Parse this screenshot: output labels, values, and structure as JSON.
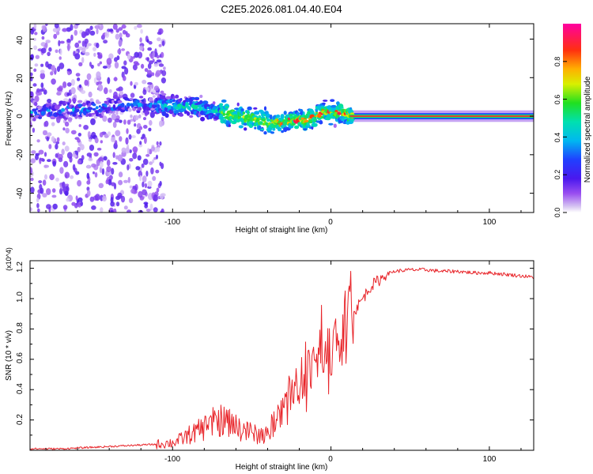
{
  "figure_title": "C2E5.2026.081.04.40.E04",
  "chart_data": [
    {
      "type": "heatmap",
      "title": "C2E5.2026.081.04.40.E04",
      "xlabel": "Height of straight line (km)",
      "ylabel": "Frequency (Hz)",
      "xlim": [
        -190,
        128
      ],
      "ylim": [
        -50,
        48
      ],
      "xticks": [
        -100,
        0,
        100
      ],
      "xtick_labels": [
        "-100",
        "0",
        "100"
      ],
      "yticks": [
        -40,
        -20,
        0,
        20,
        40
      ],
      "ytick_labels": [
        "-40",
        "-20",
        "0",
        "20",
        "40"
      ],
      "colorbar": {
        "label": "Normalized spectral amplitude",
        "range": [
          0,
          1
        ],
        "ticks": [
          0.0,
          0.2,
          0.4,
          0.6,
          0.8
        ],
        "tick_labels": [
          "0.0",
          "0.2",
          "0.4",
          "0.6",
          "0.8"
        ]
      },
      "ridge": {
        "x": [
          -185,
          -170,
          -150,
          -130,
          -110,
          -95,
          -85,
          -75,
          -65,
          -55,
          -45,
          -38,
          -30,
          -22,
          -15,
          -10,
          -5,
          0,
          5,
          10,
          15,
          50,
          100,
          128
        ],
        "frequency": [
          2,
          3,
          4,
          6,
          6,
          5,
          5,
          3,
          1,
          -1,
          -2,
          -4,
          -3,
          -2,
          -2,
          0,
          2,
          2,
          2,
          1,
          0,
          0,
          0,
          0
        ]
      }
    },
    {
      "type": "line",
      "xlabel": "Height of straight line (km)",
      "ylabel": "SNR (10 * v/v)",
      "y_multiplier": "(x10^4)",
      "xlim": [
        -190,
        128
      ],
      "ylim": [
        0,
        1.25
      ],
      "xticks": [
        -100,
        0,
        100
      ],
      "xtick_labels": [
        "-100",
        "0",
        "100"
      ],
      "yticks": [
        0.2,
        0.4,
        0.6,
        0.8,
        1.0,
        1.2
      ],
      "ytick_labels": [
        "0.2",
        "0.4",
        "0.6",
        "0.8",
        "1.0",
        "1.2"
      ],
      "series": [
        {
          "name": "SNR",
          "color": "#e8252a",
          "x": [
            -190,
            -170,
            -150,
            -130,
            -110,
            -100,
            -95,
            -90,
            -85,
            -80,
            -75,
            -70,
            -65,
            -60,
            -55,
            -50,
            -45,
            -40,
            -35,
            -30,
            -25,
            -20,
            -15,
            -10,
            -5,
            0,
            5,
            10,
            15,
            20,
            25,
            30,
            35,
            40,
            50,
            60,
            70,
            80,
            90,
            100,
            110,
            120,
            128
          ],
          "values": [
            0.01,
            0.01,
            0.02,
            0.03,
            0.04,
            0.05,
            0.07,
            0.1,
            0.12,
            0.15,
            0.18,
            0.2,
            0.18,
            0.15,
            0.13,
            0.11,
            0.1,
            0.1,
            0.2,
            0.3,
            0.4,
            0.45,
            0.5,
            0.55,
            0.62,
            0.65,
            0.7,
            0.8,
            0.92,
            1.0,
            1.08,
            1.12,
            1.16,
            1.18,
            1.19,
            1.19,
            1.18,
            1.18,
            1.17,
            1.17,
            1.16,
            1.15,
            1.14
          ]
        }
      ]
    }
  ]
}
